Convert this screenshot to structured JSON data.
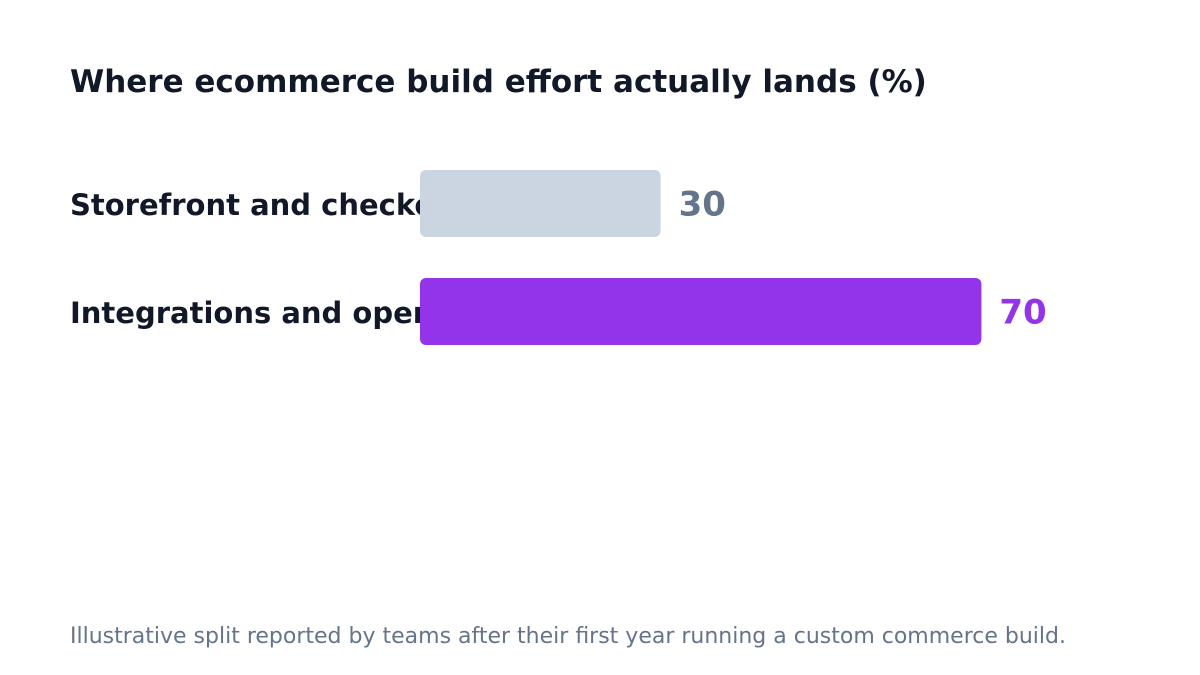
{
  "chart_data": {
    "type": "bar",
    "orientation": "horizontal",
    "title": "Where ecommerce build effort actually lands (%)",
    "categories": [
      "Storefront and checkout",
      "Integrations and operations"
    ],
    "values": [
      30,
      70
    ],
    "value_labels": [
      "30",
      "70"
    ],
    "colors": [
      "#cbd5e1",
      "#9333ea"
    ],
    "value_label_colors": [
      "#64748b",
      "#9333ea"
    ],
    "xlim": [
      0,
      100
    ],
    "grid": false,
    "legend": "none",
    "xlabel": "",
    "ylabel": ""
  },
  "footnote": "Illustrative split reported by teams after their first year running a custom commerce build."
}
